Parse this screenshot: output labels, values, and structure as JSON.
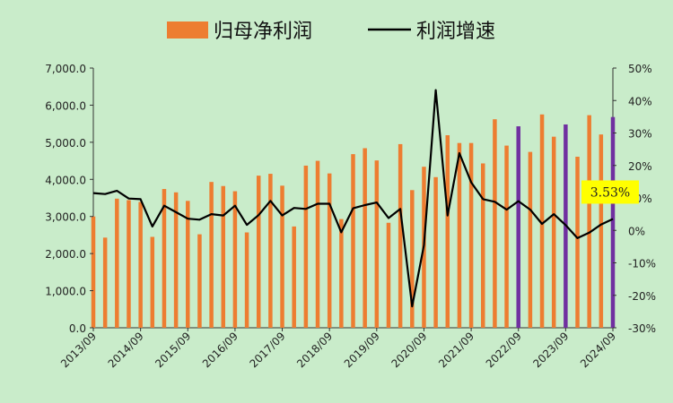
{
  "chart_data": {
    "type": "bar",
    "legend": {
      "placement": "top",
      "bar_label": "归母净利润",
      "line_label": "利润增速"
    },
    "x": [
      "2013/09",
      "2013/12",
      "2014/03",
      "2014/06",
      "2014/09",
      "2014/12",
      "2015/03",
      "2015/06",
      "2015/09",
      "2015/12",
      "2016/03",
      "2016/06",
      "2016/09",
      "2016/12",
      "2017/03",
      "2017/06",
      "2017/09",
      "2017/12",
      "2018/03",
      "2018/06",
      "2018/09",
      "2018/12",
      "2019/03",
      "2019/06",
      "2019/09",
      "2019/12",
      "2020/03",
      "2020/06",
      "2020/09",
      "2020/12",
      "2021/03",
      "2021/06",
      "2021/09",
      "2021/12",
      "2022/03",
      "2022/06",
      "2022/09",
      "2022/12",
      "2023/03",
      "2023/06",
      "2023/09",
      "2023/12",
      "2024/03",
      "2024/06",
      "2024/09"
    ],
    "x_tick_labels": [
      "2013/09",
      "2014/09",
      "2015/09",
      "2016/09",
      "2017/09",
      "2018/09",
      "2019/09",
      "2020/09",
      "2021/09",
      "2022/09",
      "2023/09",
      "2024/09"
    ],
    "series": [
      {
        "name": "归母净利润",
        "kind": "bar",
        "axis": "left",
        "values": [
          3000,
          2430,
          3480,
          3440,
          3390,
          2450,
          3740,
          3650,
          3420,
          2520,
          3930,
          3820,
          3680,
          2570,
          4100,
          4150,
          3830,
          2730,
          4370,
          4500,
          4160,
          2930,
          4680,
          4840,
          4510,
          2830,
          4950,
          3710,
          4340,
          4060,
          5190,
          4980,
          4980,
          4430,
          5620,
          4910,
          5430,
          4740,
          5750,
          5150,
          5480,
          4610,
          5730,
          5210,
          5680
        ],
        "color": "#ed7d31",
        "highlight_color": "#7030a0",
        "highlight_indices": [
          36,
          40,
          44
        ]
      },
      {
        "name": "利润增速",
        "kind": "line",
        "axis": "right",
        "values": [
          11.5,
          11.2,
          12.2,
          9.8,
          9.6,
          1.2,
          7.6,
          5.6,
          3.6,
          3.3,
          5.0,
          4.6,
          7.6,
          1.7,
          4.7,
          9.1,
          4.6,
          6.9,
          6.6,
          8.2,
          8.2,
          -0.6,
          6.8,
          7.8,
          8.6,
          3.8,
          6.6,
          -23.4,
          -4.5,
          43.2,
          4.6,
          23.8,
          14.8,
          9.6,
          8.8,
          6.4,
          9.0,
          6.4,
          2.0,
          5.0,
          1.6,
          -2.4,
          -0.7,
          1.8,
          3.53
        ],
        "color": "#000000"
      }
    ],
    "y_left": {
      "min": 0,
      "max": 7000,
      "step": 1000,
      "tick_labels": [
        "0.0",
        "1,000.0",
        "2,000.0",
        "3,000.0",
        "4,000.0",
        "5,000.0",
        "6,000.0",
        "7,000.0"
      ]
    },
    "y_right": {
      "min": -30,
      "max": 50,
      "step": 10,
      "tick_labels": [
        "-30%",
        "-20%",
        "-10%",
        "0%",
        "10%",
        "20%",
        "30%",
        "40%",
        "50%"
      ]
    },
    "callout": {
      "text": "3.53%",
      "point_index": 44,
      "background": "#ffff00"
    },
    "background": "#c9ecca",
    "grid": false
  }
}
